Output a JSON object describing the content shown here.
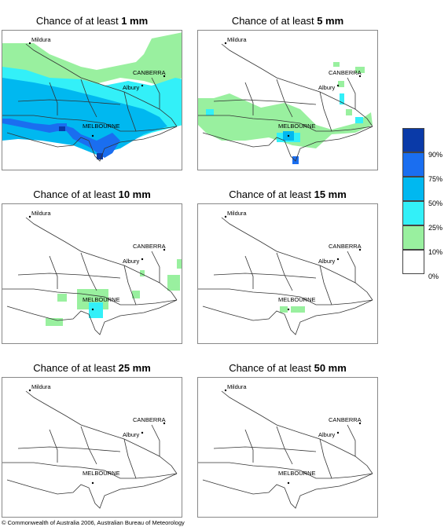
{
  "panels": [
    {
      "title_prefix": "Chance of at least ",
      "title_value": "1 mm",
      "id": "1mm"
    },
    {
      "title_prefix": "Chance of at least ",
      "title_value": "5 mm",
      "id": "5mm"
    },
    {
      "title_prefix": "Chance of at least ",
      "title_value": "10 mm",
      "id": "10mm"
    },
    {
      "title_prefix": "Chance of at least ",
      "title_value": "15 mm",
      "id": "15mm"
    },
    {
      "title_prefix": "Chance of at least ",
      "title_value": "25 mm",
      "id": "25mm"
    },
    {
      "title_prefix": "Chance of at least ",
      "title_value": "50 mm",
      "id": "50mm"
    }
  ],
  "cities": {
    "mildura": "Mildura",
    "canberra": "CANBERRA",
    "albury": "Albury",
    "melbourne": "MELBOURNE"
  },
  "legend": {
    "items": [
      {
        "label": "90%",
        "color": "#0a3aa8"
      },
      {
        "label": "75%",
        "color": "#1a6ef0"
      },
      {
        "label": "50%",
        "color": "#00b8f0"
      },
      {
        "label": "25%",
        "color": "#33f0f8"
      },
      {
        "label": "10%",
        "color": "#99f09f"
      },
      {
        "label": "0%",
        "color": "#ffffff"
      }
    ]
  },
  "copyright": "© Commonwealth of Australia 2006, Australian Bureau of Meteorology"
}
